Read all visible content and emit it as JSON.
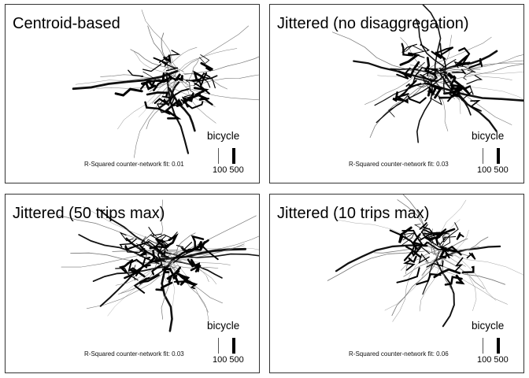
{
  "panels": [
    {
      "title": "Centroid-based",
      "legend": {
        "title": "bicycle",
        "breaks": [
          "100",
          "500"
        ]
      },
      "fit": {
        "label": "R-Squared counter-network fit:",
        "value": "0.01"
      }
    },
    {
      "title": "Jittered (no disaggregation)",
      "legend": {
        "title": "bicycle",
        "breaks": [
          "100",
          "500"
        ]
      },
      "fit": {
        "label": "R-Squared counter-network fit:",
        "value": "0.03"
      }
    },
    {
      "title": "Jittered (50 trips max)",
      "legend": {
        "title": "bicycle",
        "breaks": [
          "100",
          "500"
        ]
      },
      "fit": {
        "label": "R-Squared counter-network fit:",
        "value": "0.03"
      }
    },
    {
      "title": "Jittered (10 trips max)",
      "legend": {
        "title": "bicycle",
        "breaks": [
          "100",
          "500"
        ]
      },
      "fit": {
        "label": "R-Squared counter-network fit:",
        "value": "0.06"
      }
    }
  ]
}
